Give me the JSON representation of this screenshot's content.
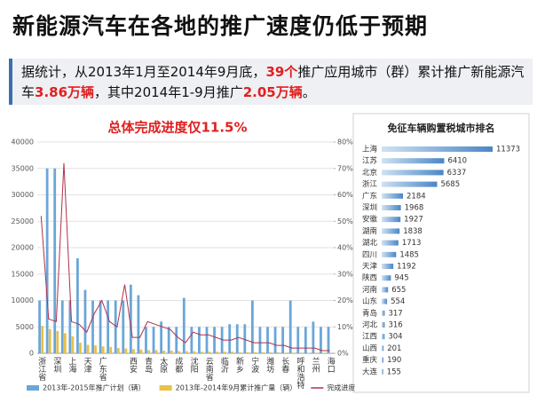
{
  "header": {
    "title": "新能源汽车在各地的推广速度仍低于预期"
  },
  "summary": {
    "parts": [
      {
        "text": "据统计，从2013年1月至2014年9月底，",
        "highlight": false
      },
      {
        "text": "39个",
        "highlight": true
      },
      {
        "text": "推广应用城市（群）累计推广新能源汽车",
        "highlight": false
      },
      {
        "text": "3.86万辆",
        "highlight": true
      },
      {
        "text": "，其中2014年1-9月推广",
        "highlight": false
      },
      {
        "text": "2.05万辆",
        "highlight": true
      },
      {
        "text": "。",
        "highlight": false
      }
    ]
  },
  "chart_data": [
    {
      "type": "bar",
      "title": "总体完成进度仅11.5%",
      "categories": [
        "浙江省",
        null,
        "深圳",
        null,
        "上海",
        null,
        "天津",
        null,
        "广东省",
        null,
        null,
        null,
        "西安",
        null,
        "青岛",
        null,
        "太原",
        null,
        "成都",
        null,
        "沈阳",
        null,
        "云南省",
        null,
        "临沂",
        null,
        "新乡",
        null,
        "宁波",
        null,
        "潍坊",
        null,
        "长春",
        null,
        "呼和浩特",
        null,
        "兰州",
        null,
        "海口"
      ],
      "series": [
        {
          "name": "2013年-2015年推广计划（辆）",
          "color": "#6aa6d8",
          "values": [
            10000,
            35000,
            35000,
            10000,
            10000,
            18000,
            12000,
            10000,
            10000,
            10000,
            10000,
            10000,
            13000,
            11000,
            5000,
            5000,
            6000,
            5000,
            5000,
            10500,
            5000,
            5000,
            5000,
            5000,
            5000,
            5500,
            5500,
            5500,
            10000,
            5000,
            5000,
            5000,
            5000,
            10000,
            5000,
            5000,
            6000,
            5000,
            5000
          ]
        },
        {
          "name": "2013年-2014年9月累计推广量（辆）",
          "color": "#e8c04a",
          "values": [
            5200,
            4600,
            4200,
            3800,
            3200,
            2000,
            1600,
            1500,
            1300,
            1200,
            1000,
            900,
            800,
            700,
            600,
            600,
            500,
            500,
            400,
            400,
            400,
            300,
            300,
            300,
            300,
            300,
            200,
            200,
            200,
            200,
            200,
            200,
            100,
            100,
            100,
            100,
            100,
            100,
            50
          ]
        },
        {
          "name": "完成进度",
          "color": "#b0304a",
          "type": "line",
          "axis": "y2",
          "values": [
            52,
            13,
            12,
            72,
            12,
            11,
            8,
            15,
            20,
            12,
            10,
            26,
            6,
            6,
            12,
            11,
            10,
            9,
            6,
            4,
            8,
            7,
            7,
            6,
            5,
            5,
            6,
            5,
            4,
            4,
            4,
            3,
            3,
            2,
            2,
            2,
            2,
            1,
            1
          ]
        }
      ],
      "ylim": [
        0,
        40000
      ],
      "yticks": [
        0,
        5000,
        10000,
        15000,
        20000,
        25000,
        30000,
        35000,
        40000
      ],
      "y2lim": [
        0,
        80
      ],
      "y2ticks": [
        {
          "value": 0,
          "label": "0%"
        },
        {
          "value": 10,
          "label": "10%"
        },
        {
          "value": 20,
          "label": "20%"
        },
        {
          "value": 30,
          "label": "30%"
        },
        {
          "value": 40,
          "label": "40%"
        },
        {
          "value": 50,
          "label": "50%"
        },
        {
          "value": 60,
          "label": "60%"
        },
        {
          "value": 70,
          "label": "70%"
        },
        {
          "value": 80,
          "label": "80%"
        }
      ],
      "grid": true,
      "legend": "bottom"
    },
    {
      "type": "hbar",
      "title": "免征车辆购置税城市排名",
      "categories": [
        "上海",
        "江苏",
        "北京",
        "浙江",
        "广东",
        "深圳",
        "安徽",
        "湖南",
        "湖北",
        "四川",
        "天津",
        "陕西",
        "河南",
        "山东",
        "青岛",
        "河北",
        "江西",
        "山西",
        "重庆",
        "大连"
      ],
      "values": [
        11373,
        6410,
        6337,
        5685,
        2184,
        1968,
        1927,
        1838,
        1713,
        1485,
        1192,
        945,
        655,
        554,
        317,
        316,
        304,
        201,
        190,
        155
      ],
      "color": "#5b9bd5"
    }
  ]
}
